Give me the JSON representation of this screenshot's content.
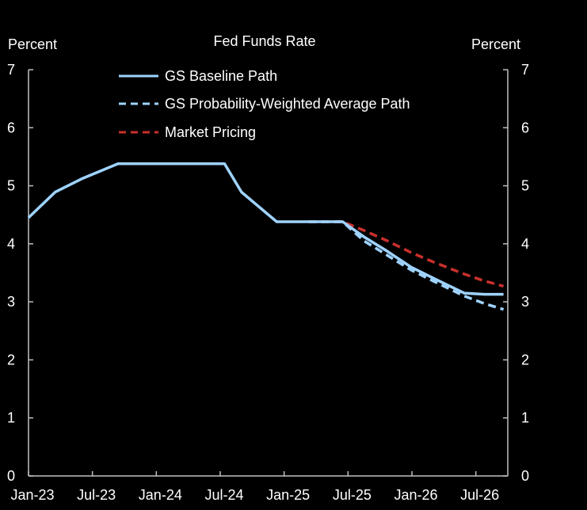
{
  "chart_data": {
    "type": "line",
    "title": "Fed Funds Rate",
    "ylabel_left": "Percent",
    "ylabel_right": "Percent",
    "ylim": [
      0,
      7
    ],
    "yticks": [
      "0",
      "1",
      "2",
      "3",
      "4",
      "5",
      "6",
      "7"
    ],
    "x_tick_labels": [
      "Jan-23",
      "Jul-23",
      "Jan-24",
      "Jul-24",
      "Jan-25",
      "Jul-25",
      "Jan-26",
      "Jul-26"
    ],
    "x_tick_months": [
      0,
      6,
      12,
      18,
      24,
      30,
      36,
      42
    ],
    "xlim_months": [
      0,
      45
    ],
    "legend_position": "top-center",
    "colors": {
      "baseline": "#9fd3ff",
      "prob_weighted": "#9fd3ff",
      "market": "#c9302c",
      "axis": "#bfbfbf",
      "background": "#000000"
    },
    "series": [
      {
        "key": "baseline",
        "name": "GS Baseline Path",
        "style": "solid",
        "months": [
          0,
          2.5,
          5,
          8.4,
          11.7,
          15.3,
          18.4,
          20,
          23.3,
          26.3,
          29.5,
          31.5,
          33.7,
          35.9,
          38.1,
          40.9,
          42.8,
          44.6
        ],
        "values": [
          4.45,
          4.89,
          5.12,
          5.38,
          5.38,
          5.38,
          5.38,
          4.89,
          4.38,
          4.38,
          4.38,
          4.12,
          3.87,
          3.6,
          3.4,
          3.15,
          3.13,
          3.13
        ]
      },
      {
        "key": "prob_weighted",
        "name": "GS Probability-Weighted Average Path",
        "style": "dashed",
        "months": [
          26.3,
          29.5,
          31.5,
          33.7,
          35.9,
          38.1,
          40.9,
          42.8,
          44.6
        ],
        "values": [
          4.38,
          4.38,
          4.05,
          3.8,
          3.55,
          3.35,
          3.1,
          2.97,
          2.87
        ]
      },
      {
        "key": "market",
        "name": "Market Pricing",
        "style": "dashed",
        "months": [
          26.3,
          29.5,
          31.5,
          33.7,
          35.9,
          38.1,
          40.9,
          42.8,
          44.6
        ],
        "values": [
          4.38,
          4.38,
          4.23,
          4.05,
          3.85,
          3.68,
          3.48,
          3.36,
          3.27
        ]
      }
    ]
  }
}
